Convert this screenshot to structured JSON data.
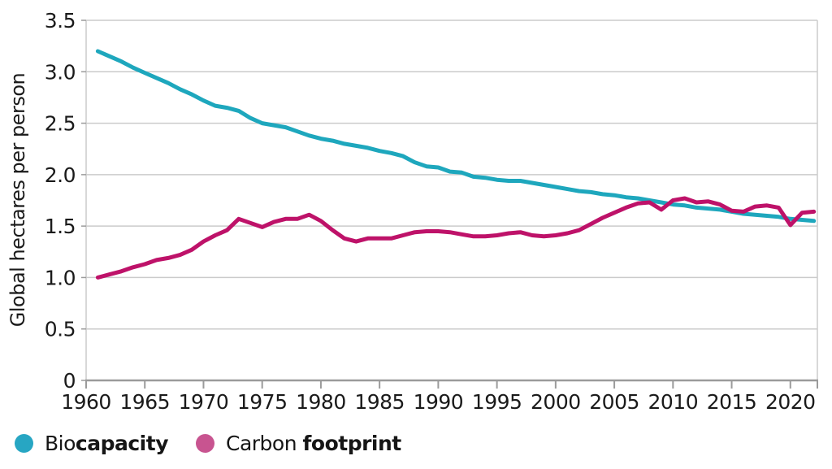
{
  "page": {
    "background": "#ffffff"
  },
  "chart_data": {
    "type": "line",
    "title": "",
    "xlabel": "",
    "ylabel": "Global hectares per person",
    "xlim": [
      1960,
      2022.3
    ],
    "ylim": [
      0,
      3.5
    ],
    "grid": "horizontal",
    "legend_position": "bottom-left",
    "x_ticks": [
      1960,
      1965,
      1970,
      1975,
      1980,
      1985,
      1990,
      1995,
      2000,
      2005,
      2010,
      2015,
      2020
    ],
    "y_ticks": [
      {
        "value": 3.5,
        "label": "3.5"
      },
      {
        "value": 3.0,
        "label": "3.0"
      },
      {
        "value": 2.5,
        "label": "2.5"
      },
      {
        "value": 2.0,
        "label": "2.0"
      },
      {
        "value": 1.5,
        "label": "1.5"
      },
      {
        "value": 1.0,
        "label": "1.0"
      },
      {
        "value": 0.5,
        "label": "0.5"
      },
      {
        "value": 0,
        "label": "0"
      }
    ],
    "x": [
      1961,
      1962,
      1963,
      1964,
      1965,
      1966,
      1967,
      1968,
      1969,
      1970,
      1971,
      1972,
      1973,
      1974,
      1975,
      1976,
      1977,
      1978,
      1979,
      1980,
      1981,
      1982,
      1983,
      1984,
      1985,
      1986,
      1987,
      1988,
      1989,
      1990,
      1991,
      1992,
      1993,
      1994,
      1995,
      1996,
      1997,
      1998,
      1999,
      2000,
      2001,
      2002,
      2003,
      2004,
      2005,
      2006,
      2007,
      2008,
      2009,
      2010,
      2011,
      2012,
      2013,
      2014,
      2015,
      2016,
      2017,
      2018,
      2019,
      2020,
      2021,
      2022
    ],
    "series": [
      {
        "name": "Biocapacity",
        "color": "#1ea7bd",
        "values": [
          3.2,
          3.15,
          3.1,
          3.04,
          2.99,
          2.94,
          2.89,
          2.83,
          2.78,
          2.72,
          2.67,
          2.65,
          2.62,
          2.55,
          2.5,
          2.48,
          2.46,
          2.42,
          2.38,
          2.35,
          2.33,
          2.3,
          2.28,
          2.26,
          2.23,
          2.21,
          2.18,
          2.12,
          2.08,
          2.07,
          2.03,
          2.02,
          1.98,
          1.97,
          1.95,
          1.94,
          1.94,
          1.92,
          1.9,
          1.88,
          1.86,
          1.84,
          1.83,
          1.81,
          1.8,
          1.78,
          1.77,
          1.75,
          1.73,
          1.71,
          1.7,
          1.68,
          1.67,
          1.66,
          1.64,
          1.62,
          1.61,
          1.6,
          1.59,
          1.57,
          1.56,
          1.55
        ]
      },
      {
        "name": "Carbon footprint",
        "color": "#be1269",
        "values": [
          1.0,
          1.03,
          1.06,
          1.1,
          1.13,
          1.17,
          1.19,
          1.22,
          1.27,
          1.35,
          1.41,
          1.46,
          1.57,
          1.53,
          1.49,
          1.54,
          1.57,
          1.57,
          1.61,
          1.55,
          1.46,
          1.38,
          1.35,
          1.38,
          1.38,
          1.38,
          1.41,
          1.44,
          1.45,
          1.45,
          1.44,
          1.42,
          1.4,
          1.4,
          1.41,
          1.43,
          1.44,
          1.41,
          1.4,
          1.41,
          1.43,
          1.46,
          1.52,
          1.58,
          1.63,
          1.68,
          1.72,
          1.73,
          1.66,
          1.75,
          1.77,
          1.73,
          1.74,
          1.71,
          1.65,
          1.64,
          1.69,
          1.7,
          1.68,
          1.51,
          1.63,
          1.64
        ]
      }
    ],
    "colors": {
      "gridline": "#cbcbcb",
      "plot_border": "#cbcbcb",
      "axis": "#9b9b9b",
      "text": "#1a1a1a"
    }
  },
  "legend": {
    "items": [
      {
        "name": "Biocapacity",
        "dot_color": "#27a6c3",
        "label_regular": "Bio",
        "label_bold": "capacity"
      },
      {
        "name": "Carbon footprint",
        "dot_color": "#c85490",
        "label_regular": "Carbon ",
        "label_bold": "footprint"
      }
    ]
  }
}
